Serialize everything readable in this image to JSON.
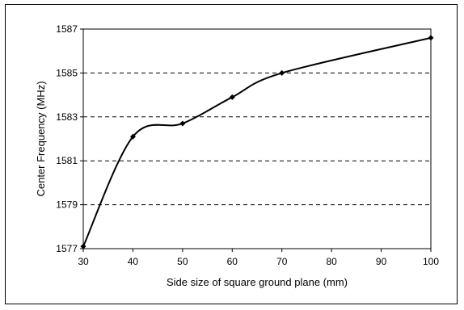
{
  "chart_data": {
    "type": "line",
    "title": "",
    "xlabel": "Side size of square ground plane (mm)",
    "ylabel": "Center Frequency (MHz)",
    "x_categories": [
      "30",
      "40",
      "50",
      "60",
      "70",
      "80",
      "90",
      "100"
    ],
    "ylim": [
      1577,
      1587
    ],
    "yticks": [
      "1577",
      "1579",
      "1581",
      "1583",
      "1585",
      "1587"
    ],
    "grid": "horizontal-dashed",
    "legend": "none",
    "series": [
      {
        "color": "#000000",
        "marker": "diamond",
        "smooth": true,
        "points": [
          {
            "x": 30,
            "y": 1577.1
          },
          {
            "x": 40,
            "y": 1582.1
          },
          {
            "x": 50,
            "y": 1582.7
          },
          {
            "x": 60,
            "y": 1583.9
          },
          {
            "x": 70,
            "y": 1585.0
          },
          {
            "x": 100,
            "y": 1586.6
          }
        ]
      }
    ]
  }
}
